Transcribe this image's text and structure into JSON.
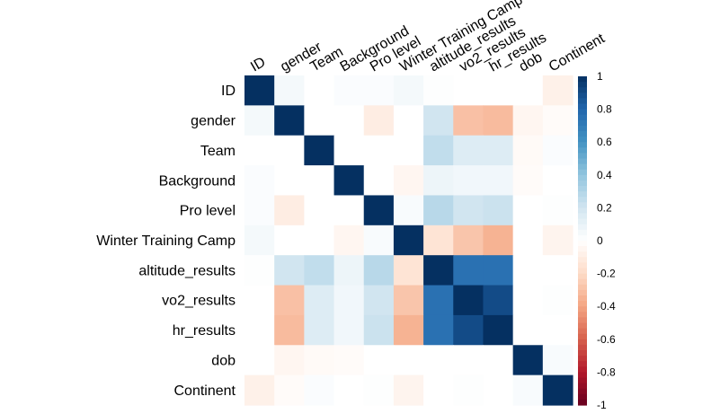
{
  "chart_data": {
    "type": "heatmap",
    "title": "",
    "variables": [
      "ID",
      "gender",
      "Team",
      "Background",
      "Pro level",
      "Winter Training Camp",
      "altitude_results",
      "vo2_results",
      "hr_results",
      "dob",
      "Continent"
    ],
    "matrix": [
      [
        1.0,
        0.05,
        0.0,
        0.02,
        0.02,
        0.05,
        0.01,
        0.0,
        0.0,
        0.0,
        -0.08
      ],
      [
        0.05,
        1.0,
        0.0,
        0.0,
        -0.1,
        0.0,
        0.2,
        -0.3,
        -0.32,
        -0.05,
        -0.02
      ],
      [
        0.0,
        0.0,
        1.0,
        0.0,
        0.0,
        0.0,
        0.25,
        0.15,
        0.15,
        -0.03,
        0.02
      ],
      [
        0.02,
        0.0,
        0.0,
        1.0,
        0.0,
        -0.05,
        0.08,
        0.06,
        0.06,
        -0.02,
        0.0
      ],
      [
        0.02,
        -0.1,
        0.0,
        0.0,
        1.0,
        0.03,
        0.28,
        0.2,
        0.22,
        0.0,
        0.01
      ],
      [
        0.05,
        0.0,
        0.0,
        -0.05,
        0.03,
        1.0,
        -0.15,
        -0.28,
        -0.35,
        0.0,
        -0.06
      ],
      [
        0.01,
        0.2,
        0.25,
        0.08,
        0.28,
        -0.15,
        1.0,
        0.75,
        0.75,
        0.0,
        0.0
      ],
      [
        0.0,
        -0.3,
        0.15,
        0.06,
        0.2,
        -0.28,
        0.75,
        1.0,
        0.9,
        0.0,
        0.01
      ],
      [
        0.0,
        -0.32,
        0.15,
        0.06,
        0.22,
        -0.35,
        0.75,
        0.9,
        1.0,
        0.0,
        0.0
      ],
      [
        0.0,
        -0.05,
        -0.03,
        -0.02,
        0.0,
        0.0,
        0.0,
        0.0,
        0.0,
        1.0,
        0.03
      ],
      [
        -0.08,
        -0.02,
        0.02,
        0.0,
        0.01,
        -0.06,
        0.0,
        0.01,
        0.0,
        0.03,
        1.0
      ]
    ],
    "colorbar": {
      "range": [
        -1,
        1
      ],
      "ticks": [
        "1",
        "0.8",
        "0.6",
        "0.4",
        "0.2",
        "0",
        "-0.2",
        "-0.4",
        "-0.6",
        "-0.8",
        "-1"
      ],
      "colors": [
        "#67001F",
        "#B2182B",
        "#D6604D",
        "#F4A582",
        "#FDDBC7",
        "#FFFFFF",
        "#D1E5F0",
        "#92C5DE",
        "#4393C3",
        "#2166AC",
        "#053061"
      ]
    },
    "grid": false,
    "legend": "right"
  }
}
